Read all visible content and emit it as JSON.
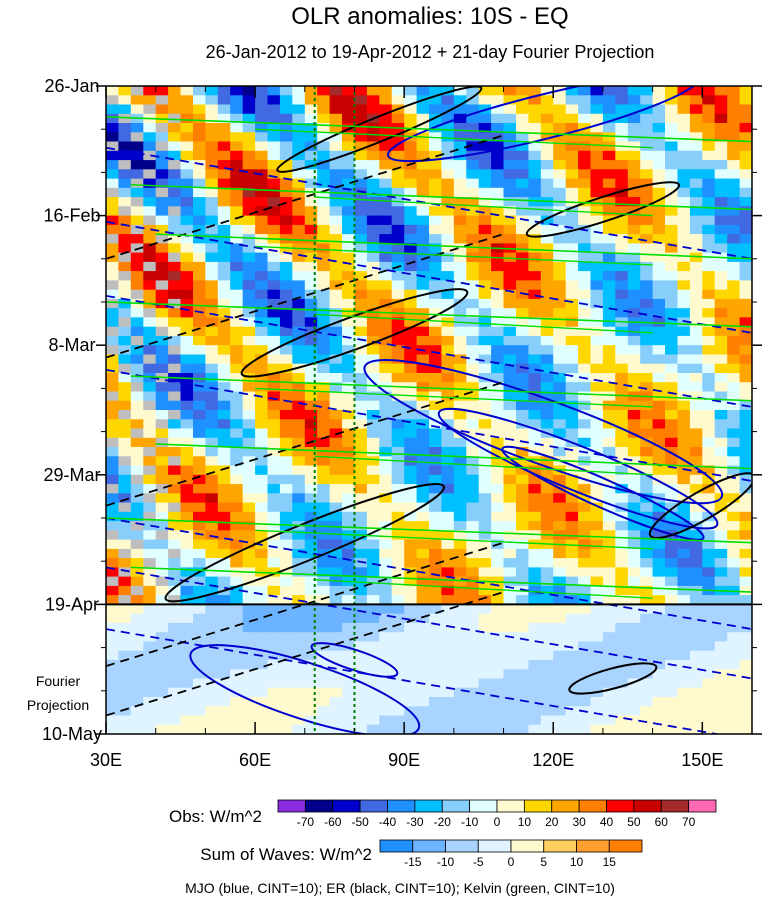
{
  "chart_data": {
    "type": "heatmap",
    "title": "OLR anomalies: 10S - EQ",
    "subtitle": "26-Jan-2012 to 19-Apr-2012 + 21-day Fourier Projection",
    "x_ticks": [
      {
        "value": 30,
        "label": "30E"
      },
      {
        "value": 60,
        "label": "60E"
      },
      {
        "value": 90,
        "label": "90E"
      },
      {
        "value": 120,
        "label": "120E"
      },
      {
        "value": 150,
        "label": "150E"
      }
    ],
    "xlim": [
      30,
      160
    ],
    "y_ticks": [
      {
        "value": 0,
        "label": "26-Jan"
      },
      {
        "value": 21,
        "label": "16-Feb"
      },
      {
        "value": 42,
        "label": "8-Mar"
      },
      {
        "value": 63,
        "label": "29-Mar"
      },
      {
        "value": 84,
        "label": "19-Apr"
      },
      {
        "value": 105,
        "label": "10-May"
      }
    ],
    "ylim_days": [
      0,
      105
    ],
    "projection_start_day": 84,
    "projection_label": [
      "Fourier",
      "Projection"
    ],
    "reference_longitudes": [
      72,
      80
    ],
    "obs_colorbar": {
      "label": "Obs: W/m^2",
      "levels": [
        "-70",
        "-60",
        "-50",
        "-40",
        "-30",
        "-20",
        "-10",
        "0",
        "10",
        "20",
        "30",
        "40",
        "50",
        "60",
        "70"
      ],
      "colors": [
        "#8a2be2",
        "#00008b",
        "#0000cd",
        "#4169e1",
        "#1e90ff",
        "#00bfff",
        "#87cefa",
        "#e0ffff",
        "#fffacd",
        "#ffd700",
        "#ffa500",
        "#ff7f00",
        "#ff0000",
        "#c80000",
        "#a52a2a",
        "#ff69b4"
      ]
    },
    "waves_colorbar": {
      "label": "Sum of Waves: W/m^2",
      "levels": [
        "-15",
        "-10",
        "-5",
        "0",
        "5",
        "10",
        "15"
      ],
      "colors": [
        "#1e90ff",
        "#6cb4ff",
        "#a8d4ff",
        "#e0f4ff",
        "#fffacd",
        "#ffd060",
        "#ffa030",
        "#ff7f00"
      ]
    },
    "caption": "MJO (blue, CINT=10); ER (black, CINT=10); Kelvin (green, CINT=10)",
    "series": [
      {
        "name": "MJO",
        "color": "#0000cd"
      },
      {
        "name": "ER",
        "color": "#000000"
      },
      {
        "name": "Kelvin",
        "color": "#00dd00"
      }
    ],
    "colors": {
      "reference_line": "#008000",
      "missing": "#bebebe"
    }
  }
}
